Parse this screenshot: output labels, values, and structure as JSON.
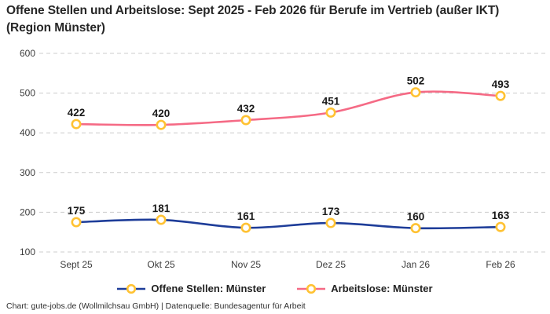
{
  "title": "Offene Stellen und Arbeitslose: Sept 2025 - Feb 2026 für Berufe im Vertrieb (außer IKT) (Region Münster)",
  "footer": "Chart: gute-jobs.de (Wollmilchsau GmbH) | Datenquelle: Bundesagentur für Arbeit",
  "colors": {
    "offene_stellen": "#1e3d99",
    "arbeitslose": "#f56a85",
    "marker_ring": "#ffc233",
    "marker_fill": "#ffffff",
    "gridline": "#cccccc",
    "tick_text": "#3c3c3c",
    "label_text": "#191919"
  },
  "chart_data": {
    "type": "line",
    "title": "Offene Stellen und Arbeitslose: Sept 2025 - Feb 2026 für Berufe im Vertrieb (außer IKT) (Region Münster)",
    "categories": [
      "Sept 25",
      "Okt 25",
      "Nov 25",
      "Dez 25",
      "Jan 26",
      "Feb 26"
    ],
    "series": [
      {
        "name": "Offene Stellen: Münster",
        "color": "#1e3d99",
        "values": [
          175,
          181,
          161,
          173,
          160,
          163
        ]
      },
      {
        "name": "Arbeitslose: Münster",
        "color": "#f56a85",
        "values": [
          422,
          420,
          432,
          451,
          502,
          493
        ]
      }
    ],
    "xlabel": "",
    "ylabel": "",
    "ylim": [
      100,
      600
    ],
    "yticks": [
      100,
      200,
      300,
      400,
      500,
      600
    ],
    "grid": "horizontal-dashed",
    "legend_position": "bottom",
    "marker_style": "ring",
    "data_labels": true
  }
}
